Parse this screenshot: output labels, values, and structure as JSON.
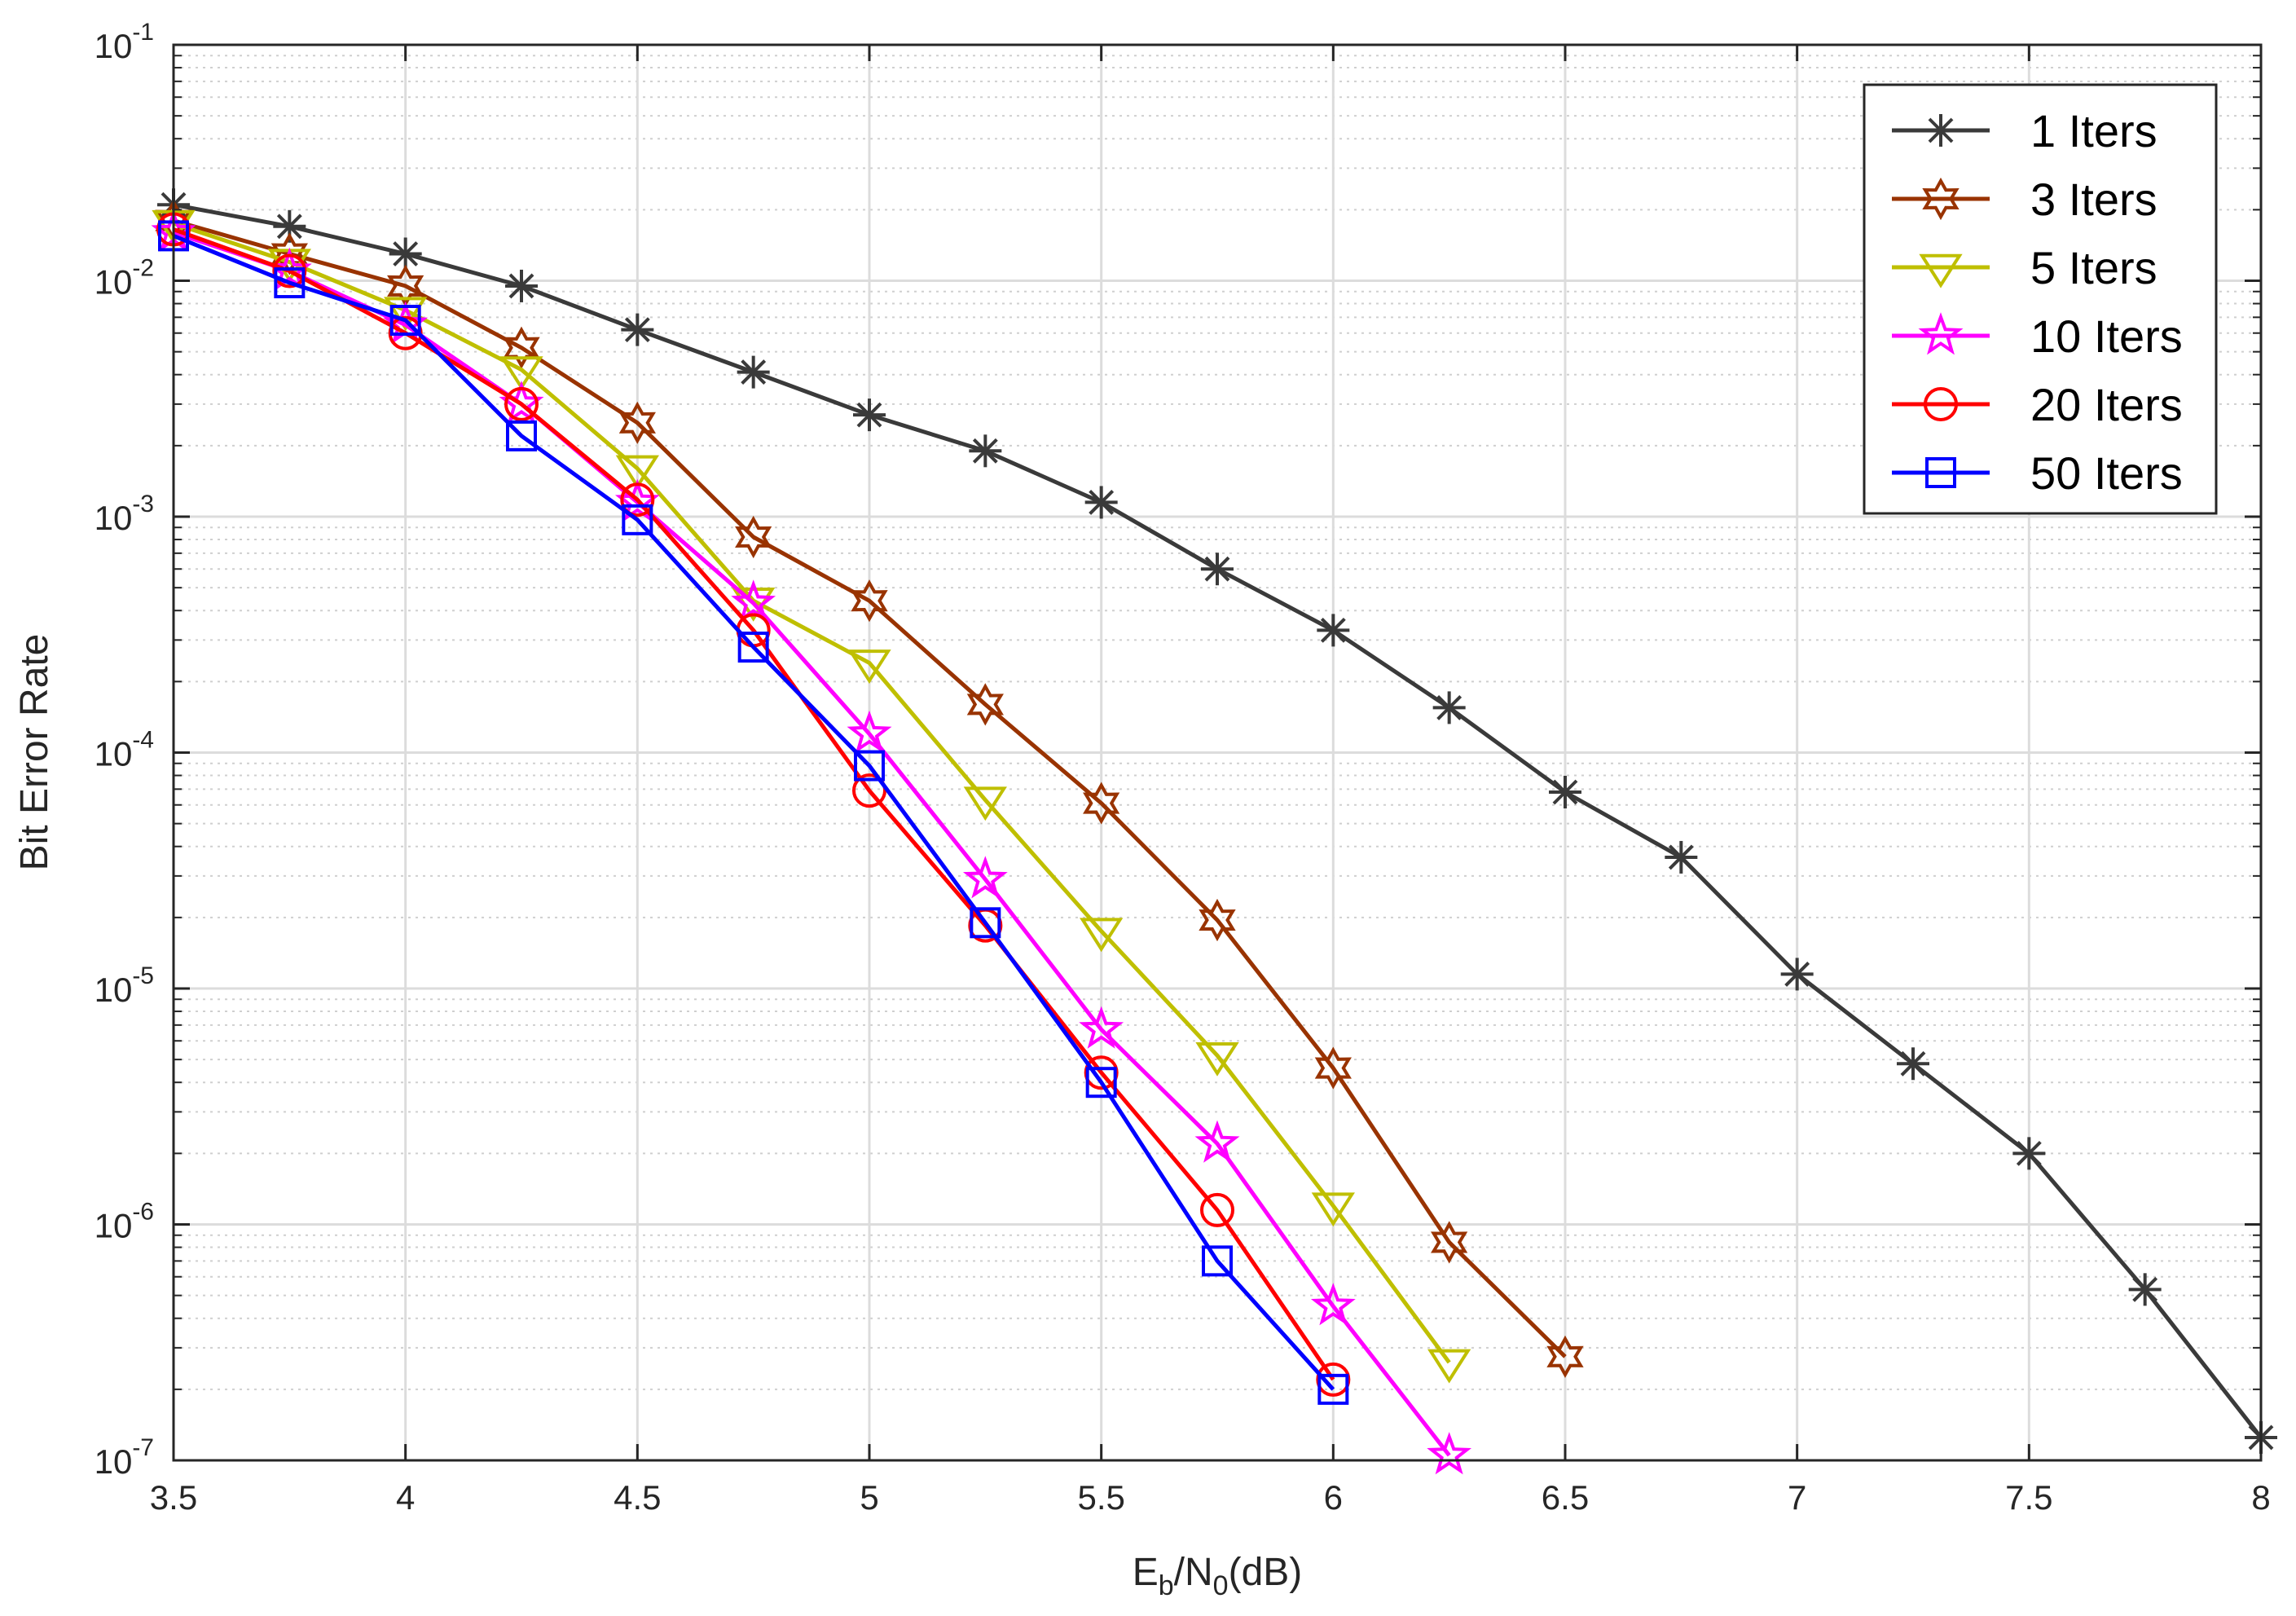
{
  "chart_data": {
    "type": "line",
    "title": "",
    "xlabel": {
      "base": "E",
      "sub1": "b",
      "mid": "/N",
      "sub2": "0",
      "tail": "(dB)"
    },
    "ylabel": "Bit Error Rate",
    "xlim": [
      3.5,
      8
    ],
    "ylim": [
      1e-07,
      0.1
    ],
    "yscale": "log",
    "grid": true,
    "minor_grid": true,
    "legend_position": "top-right",
    "x_ticks": [
      "3.5",
      "4",
      "4.5",
      "5",
      "5.5",
      "6",
      "6.5",
      "7",
      "7.5",
      "8"
    ],
    "y_ticks": [
      {
        "base": "10",
        "exp": "-7"
      },
      {
        "base": "10",
        "exp": "-6"
      },
      {
        "base": "10",
        "exp": "-5"
      },
      {
        "base": "10",
        "exp": "-4"
      },
      {
        "base": "10",
        "exp": "-3"
      },
      {
        "base": "10",
        "exp": "-2"
      },
      {
        "base": "10",
        "exp": "-1"
      }
    ],
    "series": [
      {
        "name": "1 Iters",
        "color": "#3a3a3a",
        "marker": "asterisk",
        "x": [
          3.5,
          3.75,
          4,
          4.25,
          4.5,
          4.75,
          5,
          5.25,
          5.5,
          5.75,
          6,
          6.25,
          6.5,
          6.75,
          7,
          7.25,
          7.5,
          7.75,
          8
        ],
        "y": [
          0.021,
          0.017,
          0.013,
          0.0095,
          0.0062,
          0.0041,
          0.0027,
          0.0019,
          0.00115,
          0.0006,
          0.00033,
          0.000155,
          6.8e-05,
          3.6e-05,
          1.15e-05,
          4.8e-06,
          2e-06,
          5.3e-07,
          1.25e-07
        ]
      },
      {
        "name": "3 Iters",
        "color": "#993300",
        "marker": "hexagram",
        "x": [
          3.5,
          3.75,
          4,
          4.25,
          4.5,
          4.75,
          5,
          5.25,
          5.5,
          5.75,
          6,
          6.25,
          6.5
        ],
        "y": [
          0.018,
          0.013,
          0.0095,
          0.0052,
          0.0025,
          0.00082,
          0.00044,
          0.00016,
          6.1e-05,
          1.95e-05,
          4.6e-06,
          8.4e-07,
          2.75e-07
        ]
      },
      {
        "name": "5 Iters",
        "color": "#bfbf00",
        "marker": "triangle-down",
        "x": [
          3.5,
          3.75,
          4,
          4.25,
          4.5,
          4.75,
          5,
          5.25,
          5.5,
          5.75,
          6,
          6.25
        ],
        "y": [
          0.0175,
          0.012,
          0.0075,
          0.0042,
          0.0016,
          0.00044,
          0.00024,
          6.3e-05,
          1.75e-05,
          5.2e-06,
          1.2e-06,
          2.6e-07
        ]
      },
      {
        "name": "10 Iters",
        "color": "#ff00ff",
        "marker": "pentagram",
        "x": [
          3.5,
          3.75,
          4,
          4.25,
          4.5,
          4.75,
          5,
          5.25,
          5.5,
          5.75,
          6,
          6.25
        ],
        "y": [
          0.016,
          0.011,
          0.0065,
          0.003,
          0.00115,
          0.00043,
          0.00012,
          2.9e-05,
          6.7e-06,
          2.2e-06,
          4.5e-07,
          1.05e-07
        ]
      },
      {
        "name": "20 Iters",
        "color": "#ff0000",
        "marker": "circle",
        "x": [
          3.5,
          3.75,
          4,
          4.25,
          4.5,
          4.75,
          5,
          5.25,
          5.5,
          5.75,
          6
        ],
        "y": [
          0.0165,
          0.011,
          0.006,
          0.003,
          0.00118,
          0.00033,
          6.9e-05,
          1.85e-05,
          4.4e-06,
          1.15e-06,
          2.2e-07
        ]
      },
      {
        "name": "50 Iters",
        "color": "#0000ff",
        "marker": "square",
        "x": [
          3.5,
          3.75,
          4,
          4.25,
          4.5,
          4.75,
          5,
          5.25,
          5.5,
          5.75,
          6
        ],
        "y": [
          0.0155,
          0.0098,
          0.0068,
          0.0022,
          0.00097,
          0.00028,
          8.8e-05,
          1.9e-05,
          4e-06,
          7e-07,
          2e-07
        ]
      }
    ]
  }
}
